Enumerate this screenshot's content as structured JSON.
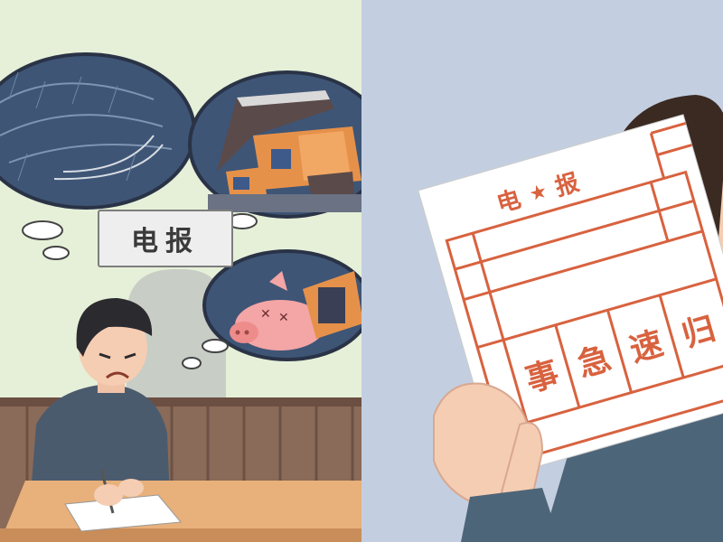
{
  "left_panel": {
    "sign_text": "电报"
  },
  "right_panel": {
    "telegram_header_left": "电",
    "telegram_header_star": "★",
    "telegram_header_right": "报",
    "telegram_message": [
      "事",
      "急",
      "速",
      "归"
    ]
  },
  "colors": {
    "left_bg": "#e6f0d8",
    "right_bg": "#c3cfe0",
    "telegram_red": "#d8623f",
    "bubble_fill": "#3c4f6e",
    "jacket": "#4a5d72"
  }
}
